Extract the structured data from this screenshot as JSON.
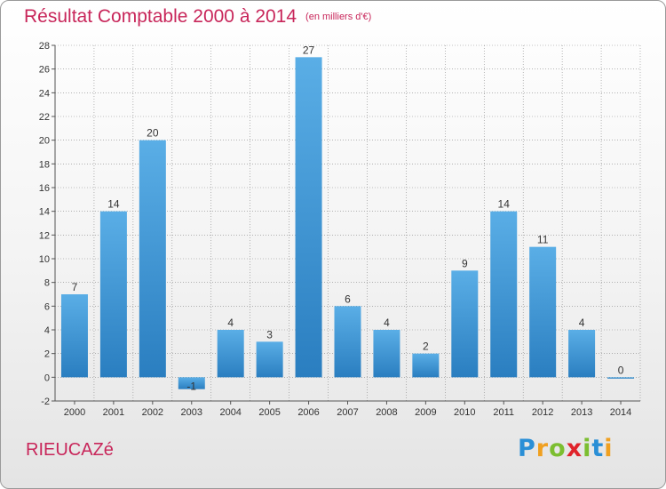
{
  "header": {
    "title": "Résultat Comptable 2000 à 2014",
    "subtitle": "(en milliers d'€)"
  },
  "footer": {
    "place": "RIEUCAZé",
    "logo_text": "Proxiti",
    "logo_letters": [
      {
        "char": "P",
        "color": "#2a8fd6"
      },
      {
        "char": "r",
        "color": "#f0a020"
      },
      {
        "char": "o",
        "color": "#7cbe30"
      },
      {
        "char": "x",
        "color": "#e0232a"
      },
      {
        "char": "i",
        "color": "#7cbe30"
      },
      {
        "char": "t",
        "color": "#2a8fd6"
      },
      {
        "char": "i",
        "color": "#f0a020"
      }
    ]
  },
  "colors": {
    "accent": "#c8265a",
    "bar_top": "#5aaee6",
    "bar_bottom": "#2a7ec0",
    "grid": "#888888"
  },
  "chart_data": {
    "type": "bar",
    "title": "Résultat Comptable 2000 à 2014",
    "subtitle": "(en milliers d'€)",
    "xlabel": "",
    "ylabel": "",
    "categories": [
      "2000",
      "2001",
      "2002",
      "2003",
      "2004",
      "2005",
      "2006",
      "2007",
      "2008",
      "2009",
      "2010",
      "2011",
      "2012",
      "2013",
      "2014"
    ],
    "values": [
      7,
      14,
      20,
      -1,
      4,
      3,
      27,
      6,
      4,
      2,
      9,
      14,
      11,
      4,
      0
    ],
    "labels": [
      "7",
      "14",
      "20",
      "-1",
      "4",
      "3",
      "27",
      "6",
      "4",
      "2",
      "9",
      "14",
      "11",
      "4",
      "0"
    ],
    "ylim": [
      -2,
      28
    ],
    "yticks": [
      -2,
      0,
      2,
      4,
      6,
      8,
      10,
      12,
      14,
      16,
      18,
      20,
      22,
      24,
      26,
      28
    ],
    "grid": true
  }
}
